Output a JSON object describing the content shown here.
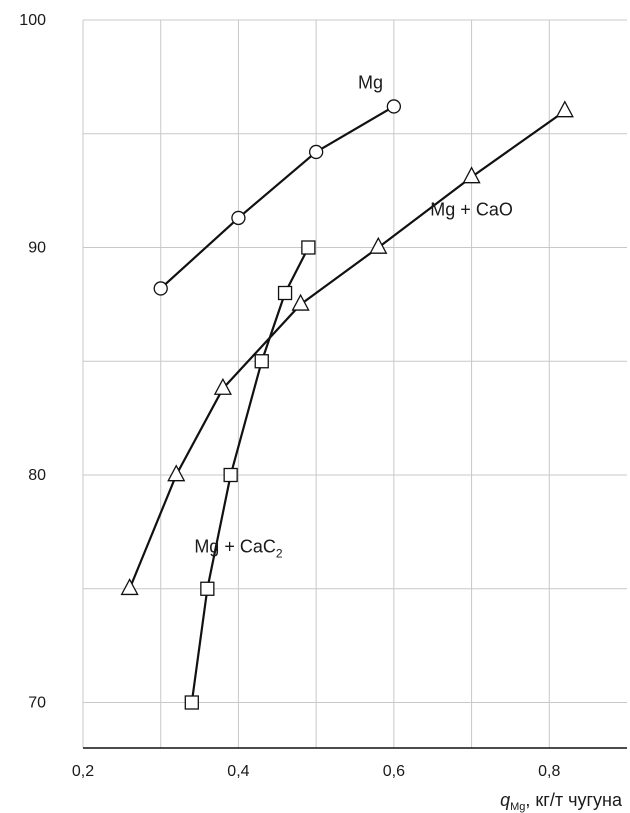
{
  "chart_data": {
    "type": "line",
    "title": "",
    "xlabel": {
      "symbol": "q",
      "subscript": "Mg",
      "rest": ", кг/т чугуна"
    },
    "ylabel": "",
    "xlim": [
      0.2,
      0.9
    ],
    "ylim": [
      68,
      100
    ],
    "grid": true,
    "x_ticks": [
      {
        "value": 0.2,
        "label": "0,2"
      },
      {
        "value": 0.4,
        "label": "0,4"
      },
      {
        "value": 0.6,
        "label": "0,6"
      },
      {
        "value": 0.8,
        "label": "0,8"
      }
    ],
    "y_ticks": [
      {
        "value": 70,
        "label": "70"
      },
      {
        "value": 80,
        "label": "80"
      },
      {
        "value": 90,
        "label": "90"
      },
      {
        "value": 100,
        "label": "100"
      }
    ],
    "x_grid": [
      0.3,
      0.4,
      0.5,
      0.6,
      0.7,
      0.8
    ],
    "y_grid": [
      70,
      75,
      80,
      85,
      90,
      95,
      100
    ],
    "series": [
      {
        "name": "Mg",
        "label_parts": [
          {
            "text": "Mg",
            "sub": ""
          }
        ],
        "marker": "circle",
        "x": [
          0.3,
          0.4,
          0.5,
          0.6
        ],
        "y": [
          88.2,
          91.3,
          94.2,
          96.2
        ],
        "label_at": {
          "x": 0.57,
          "y": 97
        }
      },
      {
        "name": "Mg + CaO",
        "label_parts": [
          {
            "text": "Mg + CaO",
            "sub": ""
          }
        ],
        "marker": "triangle",
        "x": [
          0.26,
          0.32,
          0.38,
          0.48,
          0.58,
          0.7,
          0.82
        ],
        "y": [
          75,
          80,
          83.8,
          87.5,
          90,
          93.1,
          96
        ],
        "label_at": {
          "x": 0.7,
          "y": 91.4
        }
      },
      {
        "name": "Mg + CaC2",
        "label_parts": [
          {
            "text": "Mg + CaC",
            "sub": "2"
          }
        ],
        "marker": "square",
        "x": [
          0.34,
          0.36,
          0.39,
          0.43,
          0.46,
          0.49
        ],
        "y": [
          70,
          75,
          80,
          85,
          88,
          90
        ],
        "label_at": {
          "x": 0.4,
          "y": 76.6
        }
      }
    ],
    "colors": {
      "line": "#111111",
      "grid": "#c8c8c8",
      "axis": "#111111",
      "marker_fill": "#ffffff"
    }
  }
}
